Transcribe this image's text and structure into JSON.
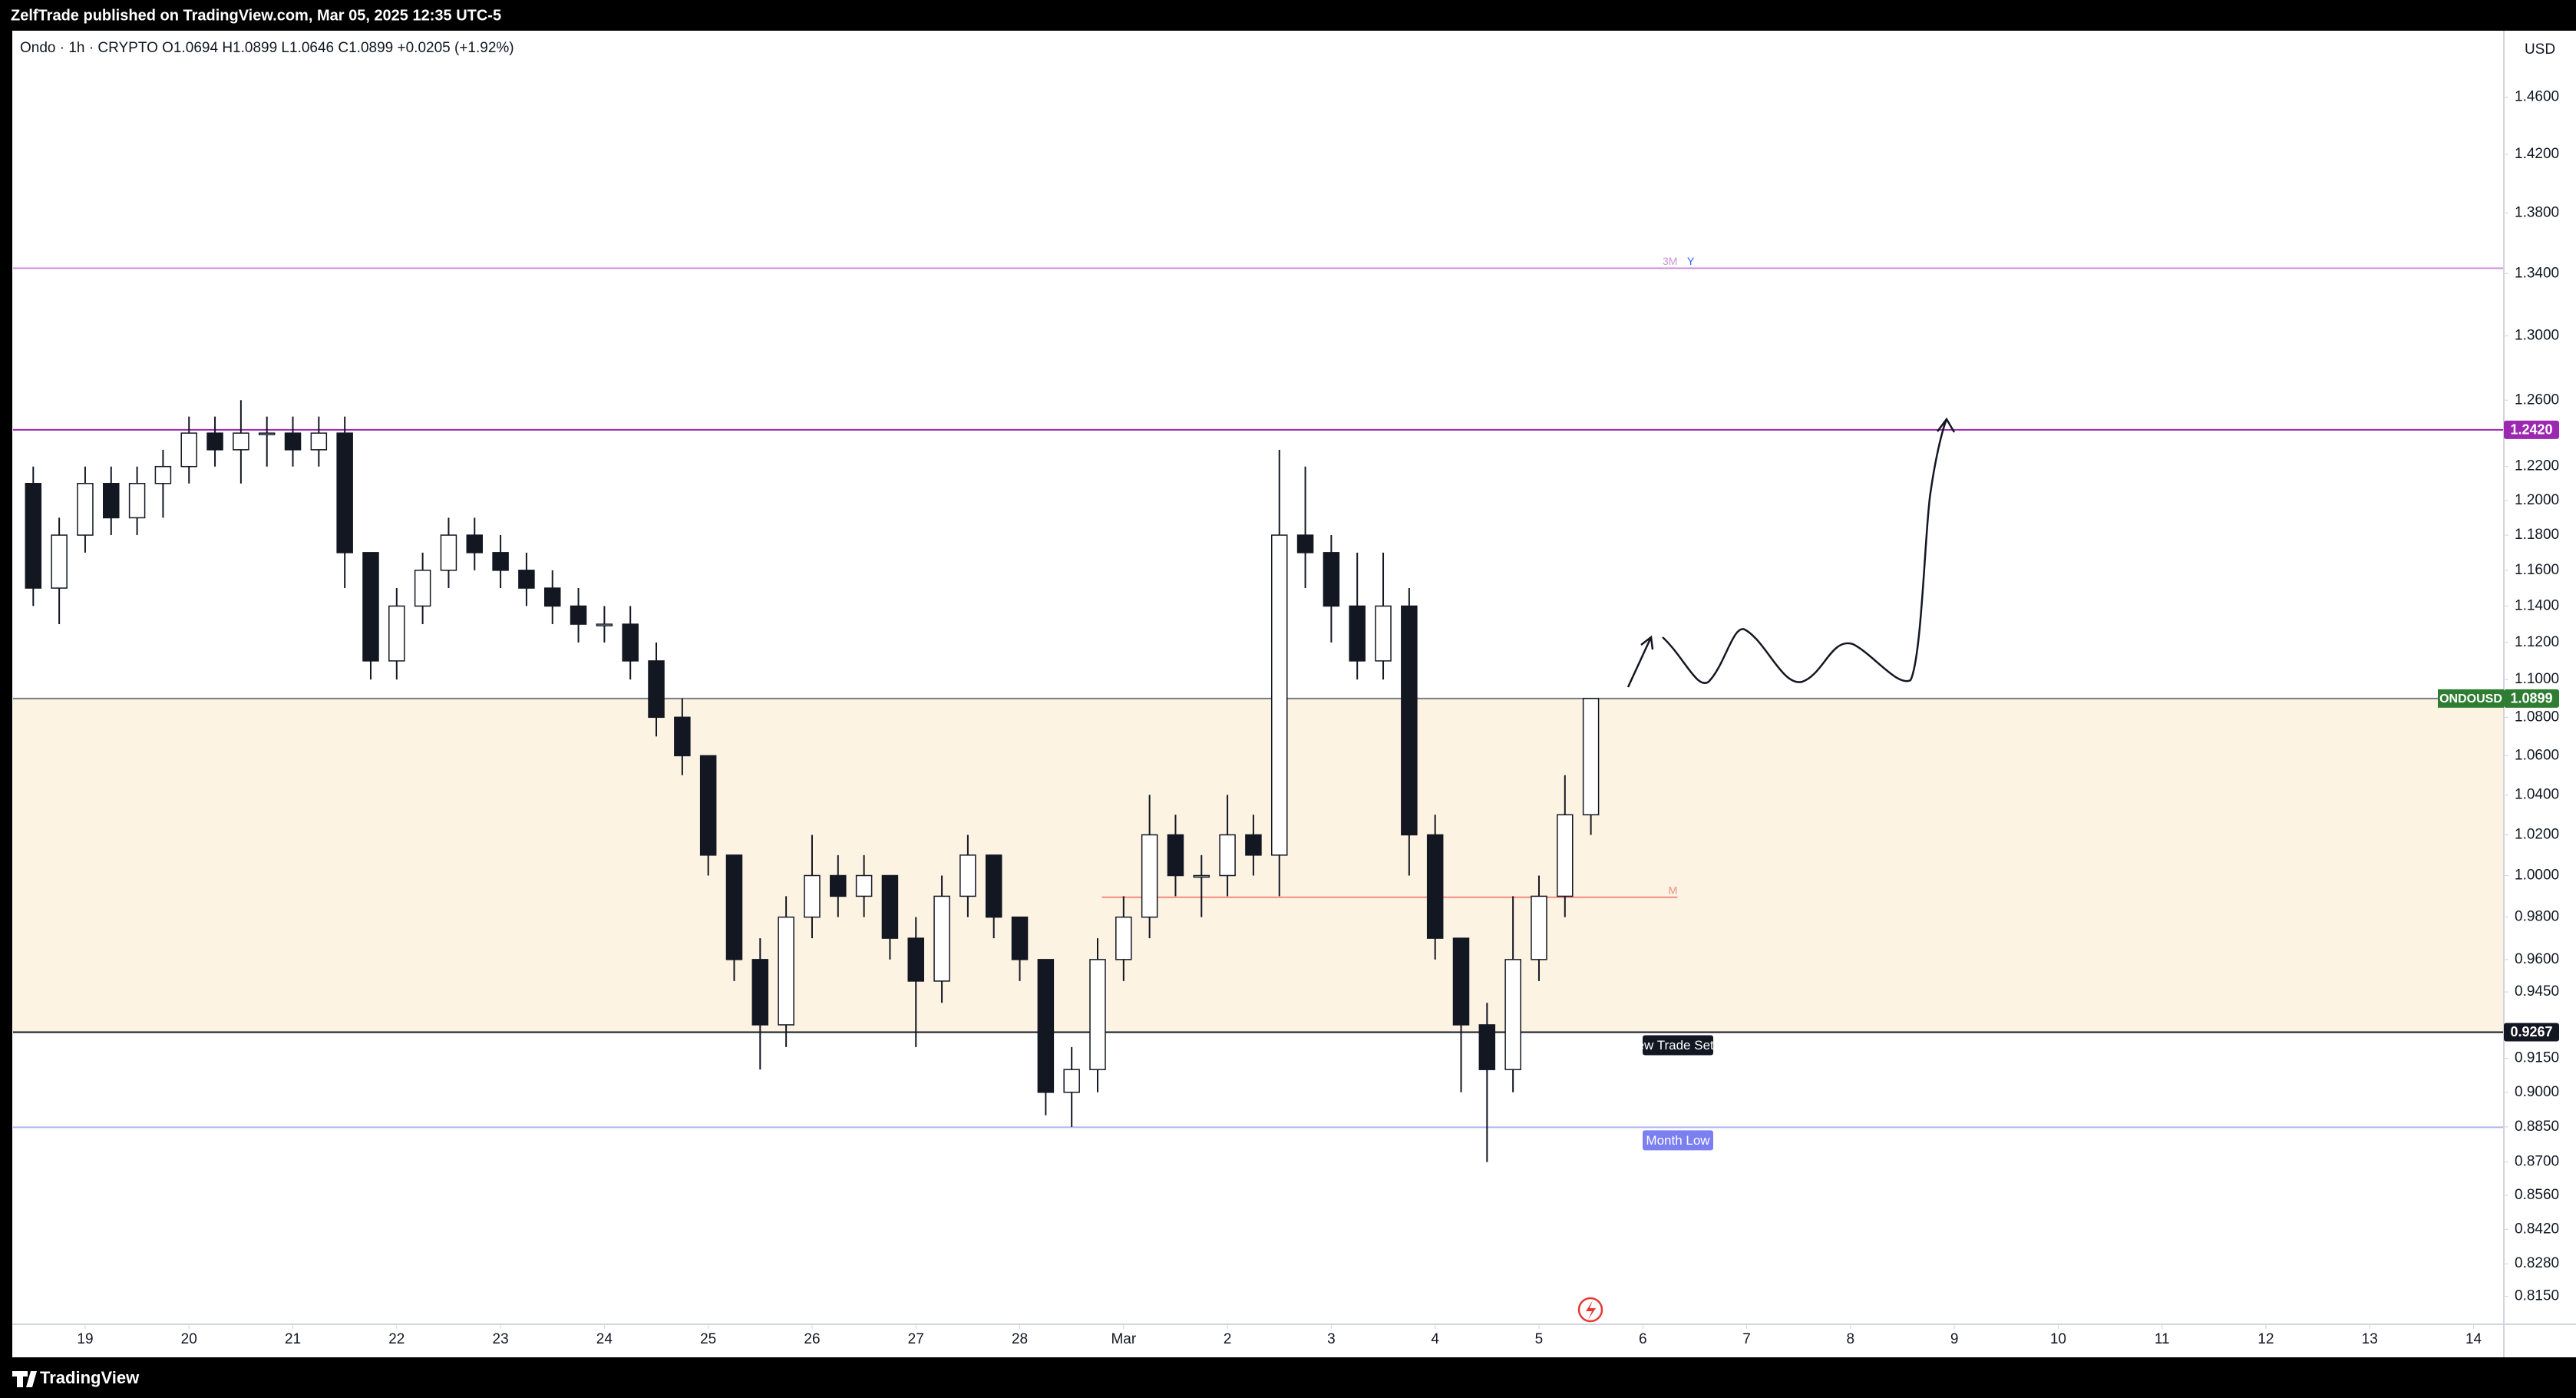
{
  "header": "ZelfTrade published on TradingView.com, Mar 05, 2025 12:35 UTC-5",
  "footer": "TradingView",
  "chart_data": {
    "type": "candlestick",
    "legend": "Ondo · 1h · CRYPTO  O1.0694  H1.0899  L1.0646  C1.0899  +0.0205 (+1.92%)",
    "unit": "USD",
    "log_scale": true,
    "grid": false,
    "up_color": "#ffffff",
    "down_color": "#131722",
    "outline": "#131722",
    "candles": {
      "x": [
        "2025-02-18T12:00",
        "2025-02-18T18:00",
        "2025-02-19T00:00",
        "2025-02-19T06:00",
        "2025-02-19T12:00",
        "2025-02-19T18:00",
        "2025-02-20T00:00",
        "2025-02-20T06:00",
        "2025-02-20T12:00",
        "2025-02-20T18:00",
        "2025-02-21T00:00",
        "2025-02-21T06:00",
        "2025-02-21T12:00",
        "2025-02-21T18:00",
        "2025-02-22T00:00",
        "2025-02-22T06:00",
        "2025-02-22T12:00",
        "2025-02-22T18:00",
        "2025-02-23T00:00",
        "2025-02-23T06:00",
        "2025-02-23T12:00",
        "2025-02-23T18:00",
        "2025-02-24T00:00",
        "2025-02-24T06:00",
        "2025-02-24T12:00",
        "2025-02-24T18:00",
        "2025-02-25T00:00",
        "2025-02-25T06:00",
        "2025-02-25T12:00",
        "2025-02-25T18:00",
        "2025-02-26T00:00",
        "2025-02-26T06:00",
        "2025-02-26T12:00",
        "2025-02-26T18:00",
        "2025-02-27T00:00",
        "2025-02-27T06:00",
        "2025-02-27T12:00",
        "2025-02-27T18:00",
        "2025-02-28T00:00",
        "2025-02-28T06:00",
        "2025-02-28T12:00",
        "2025-02-28T18:00",
        "2025-03-01T00:00",
        "2025-03-01T06:00",
        "2025-03-01T12:00",
        "2025-03-01T18:00",
        "2025-03-02T00:00",
        "2025-03-02T06:00",
        "2025-03-02T12:00",
        "2025-03-02T18:00",
        "2025-03-03T00:00",
        "2025-03-03T06:00",
        "2025-03-03T12:00",
        "2025-03-03T18:00",
        "2025-03-04T00:00",
        "2025-03-04T06:00",
        "2025-03-04T12:00",
        "2025-03-04T18:00",
        "2025-03-05T00:00",
        "2025-03-05T06:00",
        "2025-03-05T12:00"
      ],
      "open": [
        1.21,
        1.15,
        1.18,
        1.21,
        1.19,
        1.21,
        1.22,
        1.24,
        1.23,
        1.24,
        1.24,
        1.23,
        1.24,
        1.17,
        1.11,
        1.14,
        1.16,
        1.18,
        1.17,
        1.16,
        1.15,
        1.14,
        1.13,
        1.13,
        1.11,
        1.08,
        1.06,
        1.01,
        0.96,
        0.93,
        0.98,
        1.0,
        0.99,
        1.0,
        0.97,
        0.95,
        0.99,
        1.01,
        0.98,
        0.96,
        0.9,
        0.91,
        0.96,
        0.98,
        1.02,
        1.0,
        1.0,
        1.02,
        1.01,
        1.18,
        1.17,
        1.14,
        1.11,
        1.14,
        1.02,
        0.97,
        0.93,
        0.91,
        0.96,
        0.99,
        1.03
      ],
      "high": [
        1.22,
        1.19,
        1.22,
        1.22,
        1.22,
        1.23,
        1.25,
        1.25,
        1.26,
        1.25,
        1.25,
        1.25,
        1.25,
        1.17,
        1.15,
        1.17,
        1.19,
        1.19,
        1.18,
        1.17,
        1.16,
        1.15,
        1.14,
        1.14,
        1.12,
        1.09,
        1.06,
        1.01,
        0.97,
        0.99,
        1.02,
        1.01,
        1.01,
        1.0,
        0.98,
        1.0,
        1.02,
        1.01,
        0.98,
        0.96,
        0.92,
        0.97,
        0.99,
        1.04,
        1.03,
        1.01,
        1.04,
        1.03,
        1.23,
        1.22,
        1.18,
        1.17,
        1.17,
        1.15,
        1.03,
        0.97,
        0.94,
        0.99,
        1.0,
        1.05,
        1.0899
      ],
      "low": [
        1.14,
        1.13,
        1.17,
        1.18,
        1.18,
        1.19,
        1.21,
        1.22,
        1.21,
        1.22,
        1.22,
        1.22,
        1.15,
        1.1,
        1.1,
        1.13,
        1.15,
        1.16,
        1.15,
        1.14,
        1.13,
        1.12,
        1.12,
        1.1,
        1.07,
        1.05,
        1.0,
        0.95,
        0.91,
        0.92,
        0.97,
        0.98,
        0.98,
        0.96,
        0.92,
        0.94,
        0.98,
        0.97,
        0.95,
        0.89,
        0.885,
        0.9,
        0.95,
        0.97,
        0.99,
        0.98,
        0.99,
        1.0,
        0.99,
        1.15,
        1.12,
        1.1,
        1.1,
        1.0,
        0.96,
        0.9,
        0.87,
        0.9,
        0.95,
        0.98,
        1.02
      ],
      "close": [
        1.15,
        1.18,
        1.21,
        1.19,
        1.21,
        1.22,
        1.24,
        1.23,
        1.24,
        1.24,
        1.23,
        1.24,
        1.17,
        1.11,
        1.14,
        1.16,
        1.18,
        1.17,
        1.16,
        1.15,
        1.14,
        1.13,
        1.13,
        1.11,
        1.08,
        1.06,
        1.01,
        0.96,
        0.93,
        0.98,
        1.0,
        0.99,
        1.0,
        0.97,
        0.95,
        0.99,
        1.01,
        0.98,
        0.96,
        0.9,
        0.91,
        0.96,
        0.98,
        1.02,
        1.0,
        1.0,
        1.02,
        1.01,
        1.18,
        1.17,
        1.14,
        1.11,
        1.14,
        1.02,
        0.97,
        0.93,
        0.91,
        0.96,
        0.99,
        1.03,
        1.0899
      ]
    },
    "xlim": [
      "2025-02-18T07:20",
      "2025-03-14T07:00"
    ],
    "xticks": [
      {
        "value": "2025-02-19T00:00",
        "label": "19"
      },
      {
        "value": "2025-02-20T00:00",
        "label": "20"
      },
      {
        "value": "2025-02-21T00:00",
        "label": "21"
      },
      {
        "value": "2025-02-22T00:00",
        "label": "22"
      },
      {
        "value": "2025-02-23T00:00",
        "label": "23"
      },
      {
        "value": "2025-02-24T00:00",
        "label": "24"
      },
      {
        "value": "2025-02-25T00:00",
        "label": "25"
      },
      {
        "value": "2025-02-26T00:00",
        "label": "26"
      },
      {
        "value": "2025-02-27T00:00",
        "label": "27"
      },
      {
        "value": "2025-02-28T00:00",
        "label": "28"
      },
      {
        "value": "2025-03-01T00:00",
        "label": "Mar"
      },
      {
        "value": "2025-03-02T00:00",
        "label": "2"
      },
      {
        "value": "2025-03-03T00:00",
        "label": "3"
      },
      {
        "value": "2025-03-04T00:00",
        "label": "4"
      },
      {
        "value": "2025-03-05T00:00",
        "label": "5"
      },
      {
        "value": "2025-03-06T00:00",
        "label": "6"
      },
      {
        "value": "2025-03-07T00:00",
        "label": "7"
      },
      {
        "value": "2025-03-08T00:00",
        "label": "8"
      },
      {
        "value": "2025-03-09T00:00",
        "label": "9"
      },
      {
        "value": "2025-03-10T00:00",
        "label": "10"
      },
      {
        "value": "2025-03-11T00:00",
        "label": "11"
      },
      {
        "value": "2025-03-12T00:00",
        "label": "12"
      },
      {
        "value": "2025-03-13T00:00",
        "label": "13"
      },
      {
        "value": "2025-03-14T00:00",
        "label": "14"
      }
    ],
    "ylim": [
      0.804,
      1.504
    ],
    "yticks": [
      {
        "value": 1.46,
        "label": "1.4600"
      },
      {
        "value": 1.42,
        "label": "1.4200"
      },
      {
        "value": 1.38,
        "label": "1.3800"
      },
      {
        "value": 1.34,
        "label": "1.3400"
      },
      {
        "value": 1.3,
        "label": "1.3000"
      },
      {
        "value": 1.26,
        "label": "1.2600"
      },
      {
        "value": 1.22,
        "label": "1.2200"
      },
      {
        "value": 1.2,
        "label": "1.2000"
      },
      {
        "value": 1.18,
        "label": "1.1800"
      },
      {
        "value": 1.16,
        "label": "1.1600"
      },
      {
        "value": 1.14,
        "label": "1.1400"
      },
      {
        "value": 1.12,
        "label": "1.1200"
      },
      {
        "value": 1.1,
        "label": "1.1000"
      },
      {
        "value": 1.08,
        "label": "1.0800"
      },
      {
        "value": 1.06,
        "label": "1.0600"
      },
      {
        "value": 1.04,
        "label": "1.0400"
      },
      {
        "value": 1.02,
        "label": "1.0200"
      },
      {
        "value": 1.0,
        "label": "1.0000"
      },
      {
        "value": 0.98,
        "label": "0.9800"
      },
      {
        "value": 0.96,
        "label": "0.9600"
      },
      {
        "value": 0.945,
        "label": "0.9450"
      },
      {
        "value": 0.915,
        "label": "0.9150"
      },
      {
        "value": 0.9,
        "label": "0.9000"
      },
      {
        "value": 0.885,
        "label": "0.8850"
      },
      {
        "value": 0.87,
        "label": "0.8700"
      },
      {
        "value": 0.856,
        "label": "0.8560"
      },
      {
        "value": 0.842,
        "label": "0.8420"
      },
      {
        "value": 0.828,
        "label": "0.8280"
      },
      {
        "value": 0.815,
        "label": "0.8150"
      }
    ],
    "zone": {
      "from": 0.9267,
      "to": 1.0899,
      "color": "#fdf3e3"
    },
    "levels": [
      {
        "value": 1.3435,
        "color": "#ce93d8",
        "tags": [
          "3M",
          "Y"
        ]
      },
      {
        "value": 1.242,
        "label": "1.2420",
        "color": "#9c27b0"
      },
      {
        "value": 1.0899,
        "label": "1.0899",
        "name": "ONDOUSD",
        "color": "#787b86",
        "badge": "#2e7d32"
      },
      {
        "value": 0.9267,
        "label": "0.9267",
        "note": "New Trade Setup",
        "color": "#131722",
        "badge": "#131722"
      },
      {
        "value": 0.8848,
        "note": "Month Low",
        "color": "#b2b5f0",
        "badge": "#7b7ff0"
      },
      {
        "value": 0.9895,
        "tags": [
          "M"
        ],
        "color": "#f28b82",
        "from": "2025-02-28T19:00",
        "to": "2025-03-06T08:00"
      }
    ]
  }
}
